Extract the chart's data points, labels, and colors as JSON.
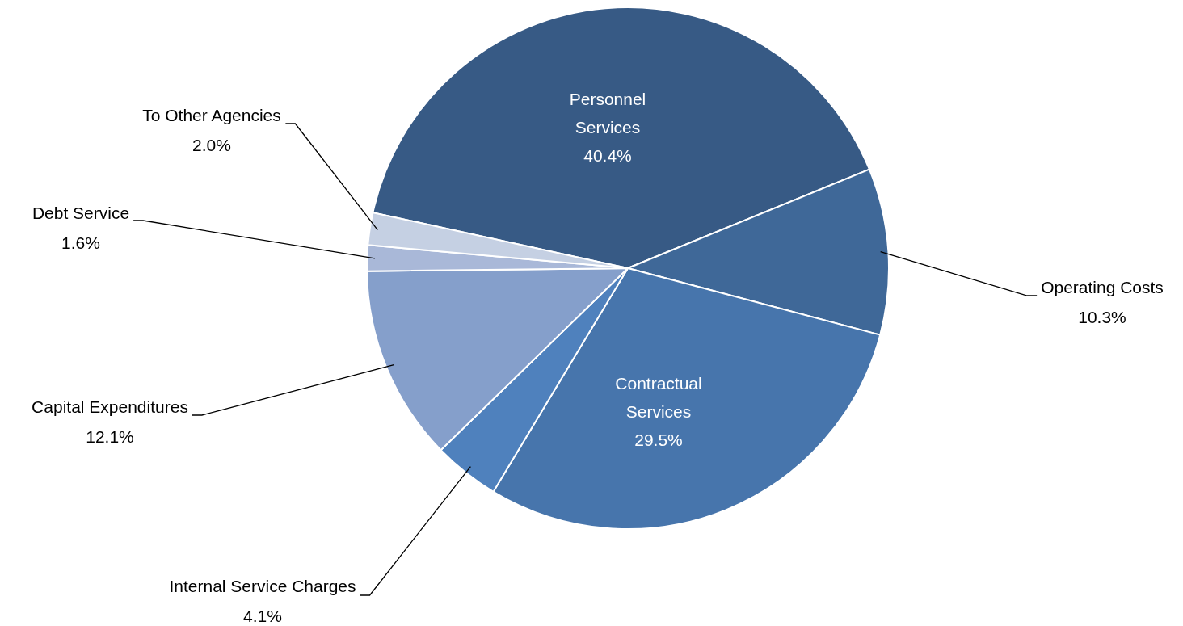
{
  "chart_data": {
    "type": "pie",
    "categories": [
      "Personnel Services",
      "Operating Costs",
      "Contractual Services",
      "Internal Service Charges",
      "Capital Expenditures",
      "Debt Service",
      "To Other Agencies"
    ],
    "values": [
      40.4,
      10.3,
      29.5,
      4.1,
      12.1,
      1.6,
      2.0
    ],
    "colors": [
      "#375a85",
      "#3f6898",
      "#4775ac",
      "#4f81bd",
      "#859fcb",
      "#a9b8d8",
      "#c5d0e3"
    ],
    "value_labels": [
      "40.4%",
      "10.3%",
      "29.5%",
      "4.1%",
      "12.1%",
      "1.6%",
      "2.0%"
    ],
    "legend": false
  }
}
